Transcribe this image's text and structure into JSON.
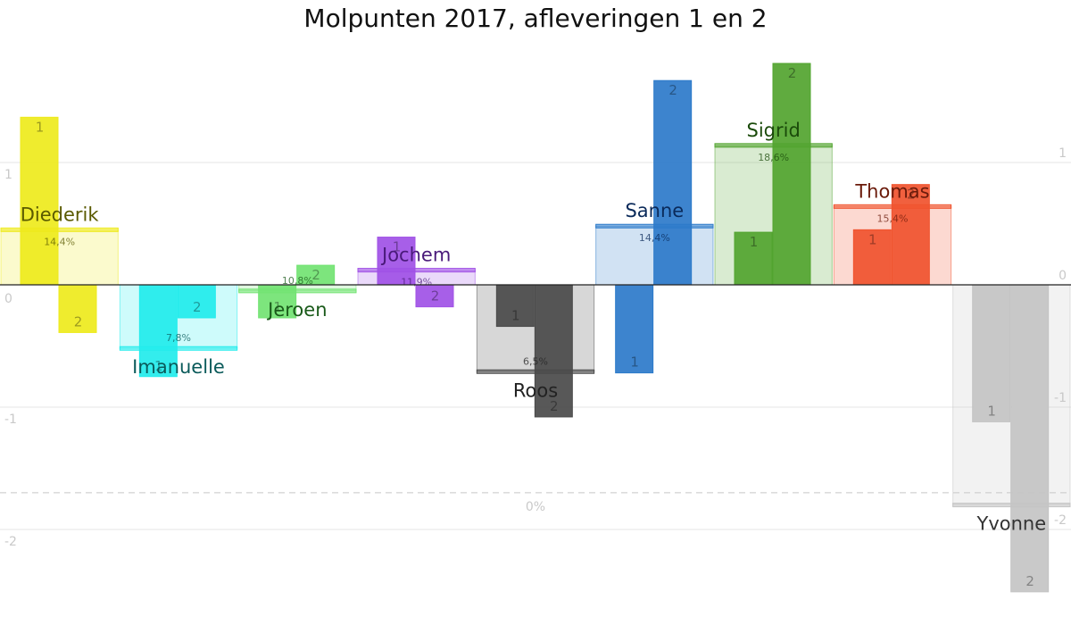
{
  "chart_data": {
    "type": "bar",
    "title": "Molpunten 2017, afleveringen 1 en 2",
    "xlabel": "",
    "ylabel": "",
    "ylim": [
      -2.5,
      1.8
    ],
    "yticks": [
      {
        "value": 1,
        "label": "1"
      },
      {
        "value": 0,
        "label": "0"
      },
      {
        "value": -1,
        "label": "-1"
      },
      {
        "value": -2,
        "label": "-2"
      }
    ],
    "baseline_label": "0%",
    "baseline_value": -1.7,
    "series_names": [
      "1",
      "2"
    ],
    "candidates": [
      {
        "name": "Diederik",
        "color": "#eeea1c",
        "text_color": "#5a5a00",
        "percent": "14,4%",
        "total": 0.45,
        "values": [
          1.37,
          -0.39
        ]
      },
      {
        "name": "Imanuelle",
        "color": "#22ecec",
        "text_color": "#0a5a5a",
        "percent": "7,8%",
        "total": -0.52,
        "values": [
          -0.75,
          -0.27
        ]
      },
      {
        "name": "Jeroen",
        "color": "#72e372",
        "text_color": "#1a5a1a",
        "percent": "10,8%",
        "total": -0.05,
        "values": [
          -0.27,
          0.16
        ]
      },
      {
        "name": "Jochem",
        "color": "#a051e6",
        "text_color": "#4a1a7a",
        "percent": "11,9%",
        "total": 0.12,
        "values": [
          0.39,
          -0.18
        ]
      },
      {
        "name": "Roos",
        "color": "#4a4a4a",
        "text_color": "#222222",
        "percent": "6,5%",
        "total": -0.71,
        "values": [
          -0.34,
          -1.08
        ]
      },
      {
        "name": "Sanne",
        "color": "#2c7aca",
        "text_color": "#0a2a5a",
        "percent": "14,4%",
        "total": 0.48,
        "values": [
          -0.72,
          1.67
        ]
      },
      {
        "name": "Sigrid",
        "color": "#52a42f",
        "text_color": "#1a4a0a",
        "percent": "18,6%",
        "total": 1.14,
        "values": [
          0.43,
          1.81
        ]
      },
      {
        "name": "Thomas",
        "color": "#f0532e",
        "text_color": "#6a1a0a",
        "percent": "15,4%",
        "total": 0.64,
        "values": [
          0.45,
          0.82
        ]
      },
      {
        "name": "Yvonne",
        "color": "#c4c4c4",
        "text_color": "#333333",
        "percent": "",
        "total": -1.8,
        "values": [
          -1.12,
          -2.51
        ]
      }
    ]
  }
}
